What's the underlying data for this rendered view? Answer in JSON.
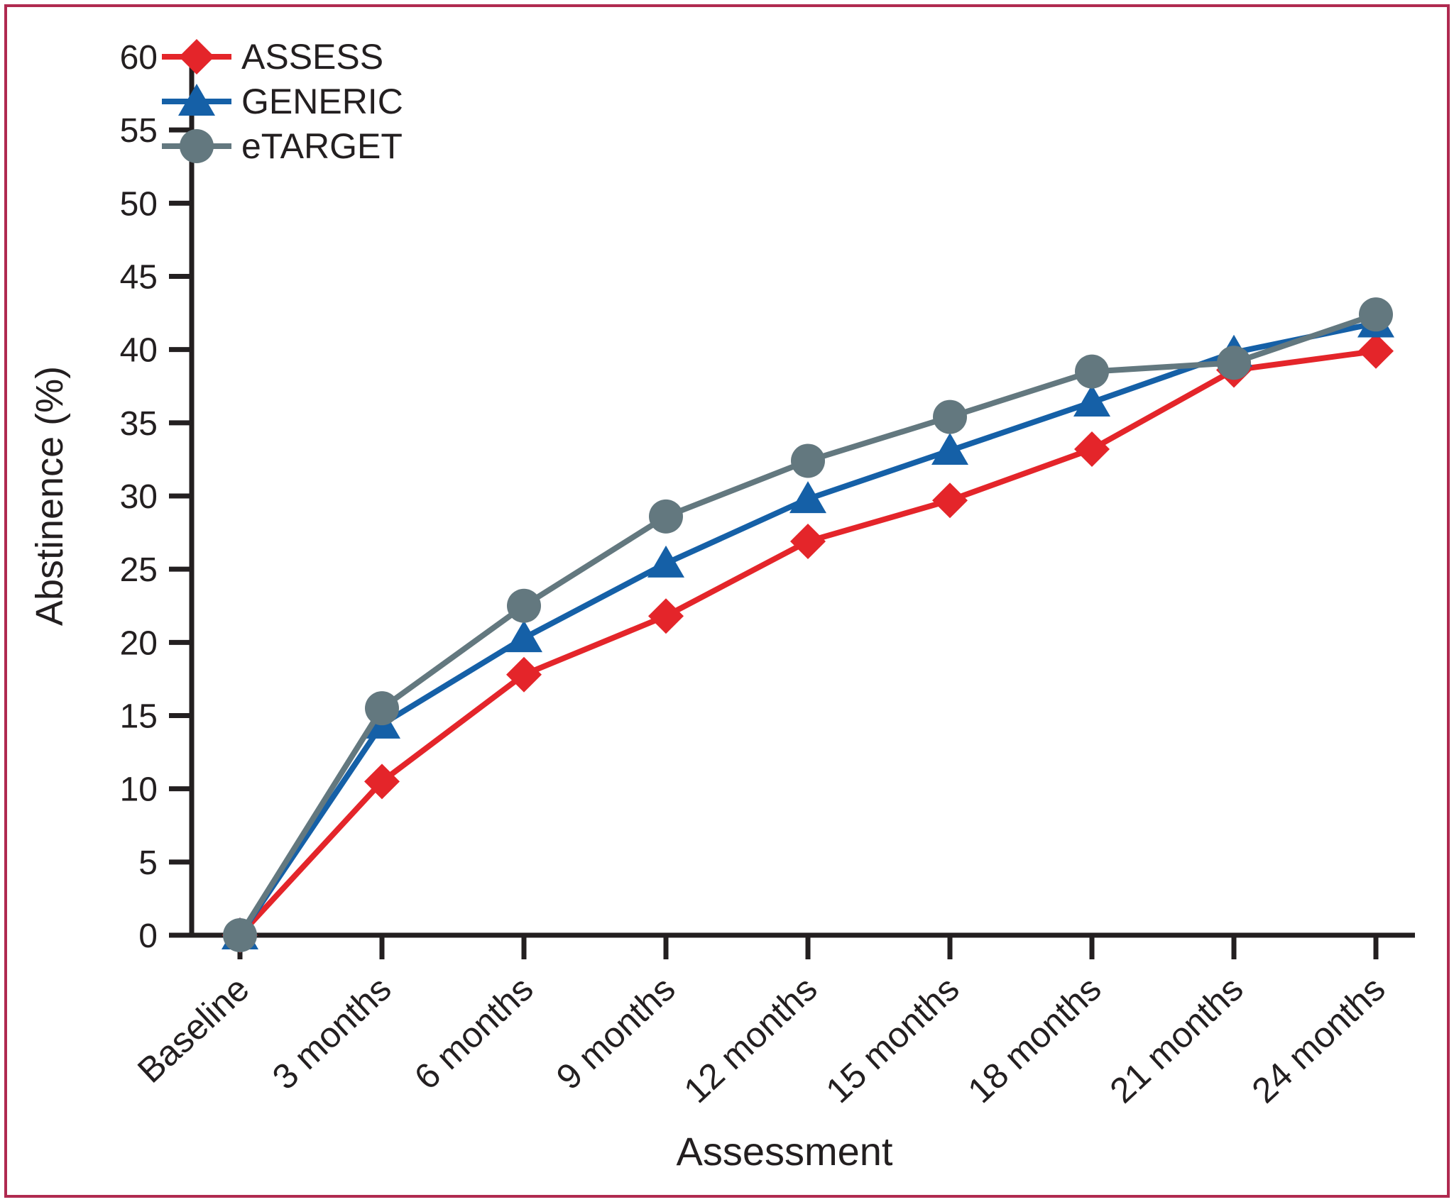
{
  "figure": {
    "border_color": "#b02a50",
    "background_color": "#ffffff",
    "text_color": "#231f20"
  },
  "chart_data": {
    "type": "line",
    "title": "",
    "xlabel": "Assessment",
    "ylabel": "Abstinence (%)",
    "categories": [
      "Baseline",
      "3 months",
      "6 months",
      "9 months",
      "12 months",
      "15 months",
      "18 months",
      "21 months",
      "24 months"
    ],
    "y_ticks": [
      0,
      5,
      10,
      15,
      20,
      25,
      30,
      35,
      40,
      45,
      50,
      55,
      60
    ],
    "ylim": [
      0,
      60
    ],
    "grid": false,
    "legend_position": "top-left",
    "axis_color": "#231f20",
    "series": [
      {
        "name": "ASSESS",
        "marker": "diamond",
        "color": "#e4252a",
        "values": [
          0,
          10.5,
          17.8,
          21.8,
          26.9,
          29.7,
          33.2,
          38.6,
          39.9
        ]
      },
      {
        "name": "GENERIC",
        "marker": "triangle",
        "color": "#1560a7",
        "values": [
          0,
          14.4,
          20.3,
          25.4,
          29.8,
          33.1,
          36.4,
          39.8,
          41.8
        ]
      },
      {
        "name": "eTARGET",
        "marker": "circle",
        "color": "#63787f",
        "values": [
          0,
          15.5,
          22.5,
          28.6,
          32.4,
          35.4,
          38.5,
          39.1,
          42.4
        ]
      }
    ]
  }
}
